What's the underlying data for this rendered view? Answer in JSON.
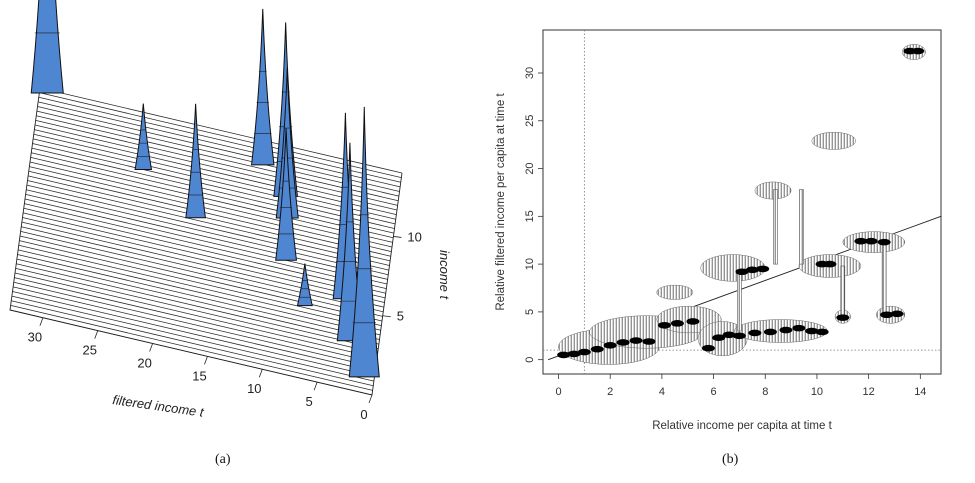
{
  "captions": {
    "a": "(a)",
    "b": "(b)"
  },
  "panel_a": {
    "xlabel": "filtered income t",
    "ylabel": "income t",
    "x_ticks": [
      "30",
      "25",
      "20",
      "15",
      "10",
      "5",
      "0"
    ],
    "y_ticks": [
      "10",
      "5"
    ],
    "surface_color": "#4f86d2"
  },
  "chart_data": [
    {
      "type": "surface",
      "panel": "a",
      "xlabel": "filtered income t",
      "ylabel": "income t",
      "x_ticks": [
        30,
        25,
        20,
        15,
        10,
        5,
        0
      ],
      "y_ticks": [
        10,
        5
      ],
      "peaks": [
        {
          "income": 13.8,
          "filtered": 32.3,
          "height": 1.0
        },
        {
          "income": 10.5,
          "filtered": 22.9,
          "height": 0.22
        },
        {
          "income": 8.3,
          "filtered": 17.7,
          "height": 0.38
        },
        {
          "income": 12.5,
          "filtered": 12.4,
          "height": 0.52
        },
        {
          "income": 10.9,
          "filtered": 10.0,
          "height": 0.58
        },
        {
          "income": 9.6,
          "filtered": 9.6,
          "height": 0.5
        },
        {
          "income": 7.0,
          "filtered": 9.2,
          "height": 0.44
        },
        {
          "income": 4.5,
          "filtered": 7.0,
          "height": 0.14
        },
        {
          "income": 5.5,
          "filtered": 3.5,
          "height": 0.62
        },
        {
          "income": 3.0,
          "filtered": 2.6,
          "height": 0.66
        },
        {
          "income": 1.0,
          "filtered": 0.9,
          "height": 0.9
        }
      ]
    },
    {
      "type": "scatter",
      "panel": "b",
      "xlabel": "Relative income per capita at time t",
      "ylabel": "Relative filtered income per capita at time t",
      "xlim": [
        -0.6,
        14.8
      ],
      "ylim": [
        -1.5,
        34.5
      ],
      "x_ticks": [
        0,
        2,
        4,
        6,
        8,
        10,
        12,
        14
      ],
      "y_ticks": [
        0,
        5,
        10,
        15,
        20,
        25,
        30
      ],
      "reference_lines": {
        "vertical": 1,
        "horizontal": 1,
        "diagonal": [
          [
            -0.4,
            0
          ],
          [
            14.8,
            15
          ]
        ]
      },
      "shaded_regions": [
        {
          "x_range": [
            0.0,
            3.9
          ],
          "y_range": [
            -0.5,
            3.2
          ]
        },
        {
          "x_range": [
            1.2,
            5.6
          ],
          "y_range": [
            1.2,
            4.6
          ]
        },
        {
          "x_range": [
            3.8,
            6.3
          ],
          "y_range": [
            2.8,
            5.6
          ]
        },
        {
          "x_range": [
            5.4,
            7.3
          ],
          "y_range": [
            0.4,
            4.0
          ]
        },
        {
          "x_range": [
            6.8,
            10.4
          ],
          "y_range": [
            1.8,
            4.2
          ]
        },
        {
          "x_range": [
            10.7,
            11.3
          ],
          "y_range": [
            3.8,
            5.2
          ]
        },
        {
          "x_range": [
            12.3,
            13.4
          ],
          "y_range": [
            3.8,
            5.6
          ]
        },
        {
          "x_range": [
            3.8,
            5.2
          ],
          "y_range": [
            6.3,
            7.8
          ]
        },
        {
          "x_range": [
            5.5,
            8.0
          ],
          "y_range": [
            8.2,
            11.0
          ]
        },
        {
          "x_range": [
            9.3,
            11.7
          ],
          "y_range": [
            8.6,
            11.0
          ]
        },
        {
          "x_range": [
            11.0,
            13.4
          ],
          "y_range": [
            11.2,
            13.4
          ]
        },
        {
          "x_range": [
            7.6,
            9.0
          ],
          "y_range": [
            16.8,
            18.6
          ]
        },
        {
          "x_range": [
            9.8,
            11.5
          ],
          "y_range": [
            22.0,
            23.8
          ]
        },
        {
          "x_range": [
            13.3,
            14.2
          ],
          "y_range": [
            31.4,
            33.0
          ]
        }
      ],
      "bridges": [
        {
          "x": 7.0,
          "y_range": [
            3.0,
            9.2
          ]
        },
        {
          "x": 8.4,
          "y_range": [
            10.0,
            17.8
          ]
        },
        {
          "x": 9.4,
          "y_range": [
            10.0,
            17.8
          ]
        },
        {
          "x": 11.0,
          "y_range": [
            4.4,
            9.8
          ]
        },
        {
          "x": 12.6,
          "y_range": [
            4.8,
            12.3
          ]
        }
      ],
      "points": [
        {
          "x": 0.2,
          "y": 0.5
        },
        {
          "x": 0.6,
          "y": 0.6
        },
        {
          "x": 1.0,
          "y": 0.8
        },
        {
          "x": 1.5,
          "y": 1.1
        },
        {
          "x": 2.0,
          "y": 1.5
        },
        {
          "x": 2.5,
          "y": 1.8
        },
        {
          "x": 3.0,
          "y": 2.0
        },
        {
          "x": 3.5,
          "y": 1.9
        },
        {
          "x": 4.1,
          "y": 3.6
        },
        {
          "x": 4.6,
          "y": 3.8
        },
        {
          "x": 5.2,
          "y": 4.0
        },
        {
          "x": 5.8,
          "y": 1.2
        },
        {
          "x": 6.2,
          "y": 2.3
        },
        {
          "x": 6.6,
          "y": 2.6
        },
        {
          "x": 7.0,
          "y": 2.5
        },
        {
          "x": 7.6,
          "y": 2.8
        },
        {
          "x": 8.2,
          "y": 2.9
        },
        {
          "x": 8.8,
          "y": 3.1
        },
        {
          "x": 9.3,
          "y": 3.3
        },
        {
          "x": 9.8,
          "y": 3.0
        },
        {
          "x": 10.2,
          "y": 2.9
        },
        {
          "x": 11.0,
          "y": 4.4
        },
        {
          "x": 12.7,
          "y": 4.7
        },
        {
          "x": 13.1,
          "y": 4.8
        },
        {
          "x": 7.1,
          "y": 9.2
        },
        {
          "x": 7.5,
          "y": 9.4
        },
        {
          "x": 7.9,
          "y": 9.5
        },
        {
          "x": 10.2,
          "y": 10.0
        },
        {
          "x": 10.5,
          "y": 10.0
        },
        {
          "x": 11.7,
          "y": 12.4
        },
        {
          "x": 12.1,
          "y": 12.4
        },
        {
          "x": 12.6,
          "y": 12.3
        },
        {
          "x": 13.6,
          "y": 32.3
        },
        {
          "x": 13.9,
          "y": 32.3
        }
      ]
    }
  ]
}
